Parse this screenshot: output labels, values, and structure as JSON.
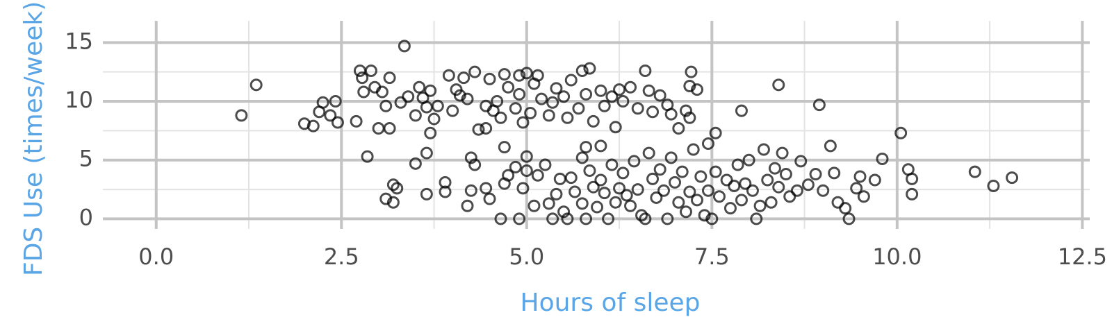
{
  "chart_data": {
    "type": "scatter",
    "x_label": "Hours of sleep",
    "y_label": "FDS Use (times/week)",
    "x": [
      1.15,
      1.35,
      2.0,
      2.12,
      2.2,
      2.25,
      2.35,
      2.42,
      2.45,
      2.7,
      2.75,
      2.8,
      2.78,
      2.9,
      2.95,
      3.05,
      3.1,
      3.0,
      3.15,
      3.15,
      3.3,
      3.35,
      3.4,
      3.55,
      3.5,
      3.6,
      3.65,
      3.7,
      3.75,
      3.8,
      3.7,
      3.95,
      4.0,
      4.05,
      4.1,
      4.15,
      4.2,
      4.3,
      4.35,
      4.45,
      4.45,
      4.5,
      4.55,
      4.6,
      4.65,
      4.7,
      4.75,
      4.85,
      4.9,
      4.9,
      4.95,
      5.0,
      5.05,
      5.1,
      5.15,
      5.2,
      5.3,
      5.35,
      5.4,
      5.5,
      5.55,
      5.6,
      5.7,
      5.75,
      5.8,
      5.85,
      5.9,
      6.0,
      6.05,
      6.15,
      6.2,
      6.25,
      6.3,
      6.4,
      6.5,
      6.6,
      6.65,
      6.7,
      6.8,
      6.9,
      6.95,
      7.05,
      7.15,
      7.2,
      7.22,
      7.3,
      7.2,
      7.45,
      7.55,
      7.9,
      8.4,
      8.95,
      5.8,
      6.0,
      4.7,
      3.65,
      3.5,
      4.25,
      2.85,
      3.1,
      3.2,
      3.2,
      3.25,
      3.65,
      3.9,
      3.9,
      4.2,
      4.25,
      4.3,
      4.45,
      4.5,
      4.65,
      4.7,
      4.75,
      4.85,
      4.9,
      4.95,
      5.0,
      5.0,
      5.1,
      5.15,
      5.25,
      5.3,
      5.35,
      5.4,
      5.45,
      5.5,
      5.55,
      5.6,
      5.65,
      5.75,
      5.75,
      5.8,
      5.85,
      5.9,
      5.95,
      6.0,
      6.05,
      6.1,
      6.15,
      6.2,
      6.25,
      6.3,
      6.35,
      6.4,
      6.45,
      6.5,
      6.55,
      6.6,
      6.65,
      6.7,
      6.75,
      6.8,
      6.85,
      6.9,
      6.95,
      7.0,
      7.05,
      7.1,
      7.15,
      7.2,
      7.25,
      7.3,
      7.35,
      7.4,
      7.45,
      7.5,
      7.55,
      7.6,
      7.7,
      7.75,
      7.8,
      7.85,
      7.9,
      7.95,
      8.0,
      8.05,
      8.1,
      8.15,
      8.2,
      8.25,
      8.3,
      8.35,
      8.4,
      8.45,
      8.5,
      8.55,
      8.65,
      8.7,
      8.8,
      8.9,
      9.0,
      9.1,
      9.15,
      9.2,
      9.3,
      9.35,
      9.45,
      9.5,
      9.55,
      9.7,
      9.8,
      10.05,
      10.15,
      10.2,
      10.2,
      11.05,
      11.3,
      11.55
    ],
    "values": [
      8.8,
      11.4,
      8.1,
      7.9,
      9.1,
      9.9,
      8.8,
      10.0,
      8.2,
      8.3,
      12.6,
      10.8,
      12.0,
      12.6,
      11.2,
      10.8,
      9.6,
      7.7,
      7.7,
      12.0,
      9.9,
      14.7,
      10.4,
      11.2,
      8.8,
      10.3,
      9.5,
      7.3,
      8.5,
      9.6,
      10.9,
      12.2,
      9.2,
      11.0,
      10.5,
      12.0,
      10.2,
      12.5,
      7.6,
      7.7,
      9.6,
      11.9,
      9.2,
      10.0,
      8.6,
      12.3,
      11.2,
      9.4,
      12.2,
      10.6,
      8.2,
      12.4,
      9.0,
      11.5,
      12.2,
      10.2,
      8.8,
      9.9,
      11.1,
      10.4,
      8.6,
      11.8,
      9.4,
      12.6,
      10.6,
      12.8,
      8.3,
      10.9,
      9.6,
      10.4,
      7.8,
      11.0,
      10.0,
      11.2,
      9.4,
      12.6,
      10.9,
      9.1,
      10.5,
      9.7,
      8.9,
      7.7,
      9.2,
      11.3,
      12.5,
      11.0,
      8.6,
      6.4,
      7.3,
      9.2,
      11.4,
      9.7,
      6.1,
      6.2,
      6.1,
      5.6,
      4.7,
      5.2,
      5.3,
      1.7,
      1.4,
      2.9,
      2.6,
      2.1,
      3.1,
      2.3,
      1.1,
      2.4,
      4.6,
      2.6,
      1.7,
      0,
      3.0,
      3.7,
      4.4,
      0,
      2.6,
      4.1,
      5.3,
      1.1,
      3.7,
      4.6,
      1.3,
      0,
      2.1,
      3.4,
      0.6,
      0,
      3.5,
      2.3,
      1.3,
      5.2,
      0,
      4.1,
      2.7,
      1.0,
      3.3,
      2.2,
      0,
      4.6,
      1.4,
      2.6,
      3.9,
      2.0,
      1.1,
      4.9,
      2.5,
      0.3,
      0,
      5.6,
      3.4,
      1.8,
      4.2,
      2.4,
      0,
      5.2,
      3.1,
      1.4,
      4.0,
      0.6,
      2.3,
      5.9,
      1.6,
      3.6,
      0.3,
      2.4,
      0,
      4.0,
      1.9,
      3.3,
      0.9,
      2.8,
      4.6,
      1.6,
      3.0,
      5.0,
      2.4,
      0,
      1.1,
      5.9,
      3.3,
      1.4,
      4.3,
      2.7,
      5.6,
      3.8,
      1.9,
      2.4,
      4.9,
      2.9,
      3.8,
      2.4,
      6.2,
      3.9,
      1.4,
      0.9,
      0,
      2.6,
      3.6,
      1.9,
      3.3,
      5.1,
      7.3,
      4.2,
      3.4,
      2.1,
      4.0,
      2.8,
      3.5
    ],
    "color": "#000000",
    "xlim": [
      -0.72,
      12.6
    ],
    "ylim": [
      -0.86,
      16.85
    ],
    "xticks": [
      {
        "value": 0,
        "label": "0.0"
      },
      2.5,
      {
        "value": 5,
        "label": "5.0"
      },
      7.5,
      {
        "value": 10,
        "label": "10.0"
      },
      12.5
    ],
    "yticks": [
      0,
      5,
      10,
      15
    ],
    "grid": true
  }
}
